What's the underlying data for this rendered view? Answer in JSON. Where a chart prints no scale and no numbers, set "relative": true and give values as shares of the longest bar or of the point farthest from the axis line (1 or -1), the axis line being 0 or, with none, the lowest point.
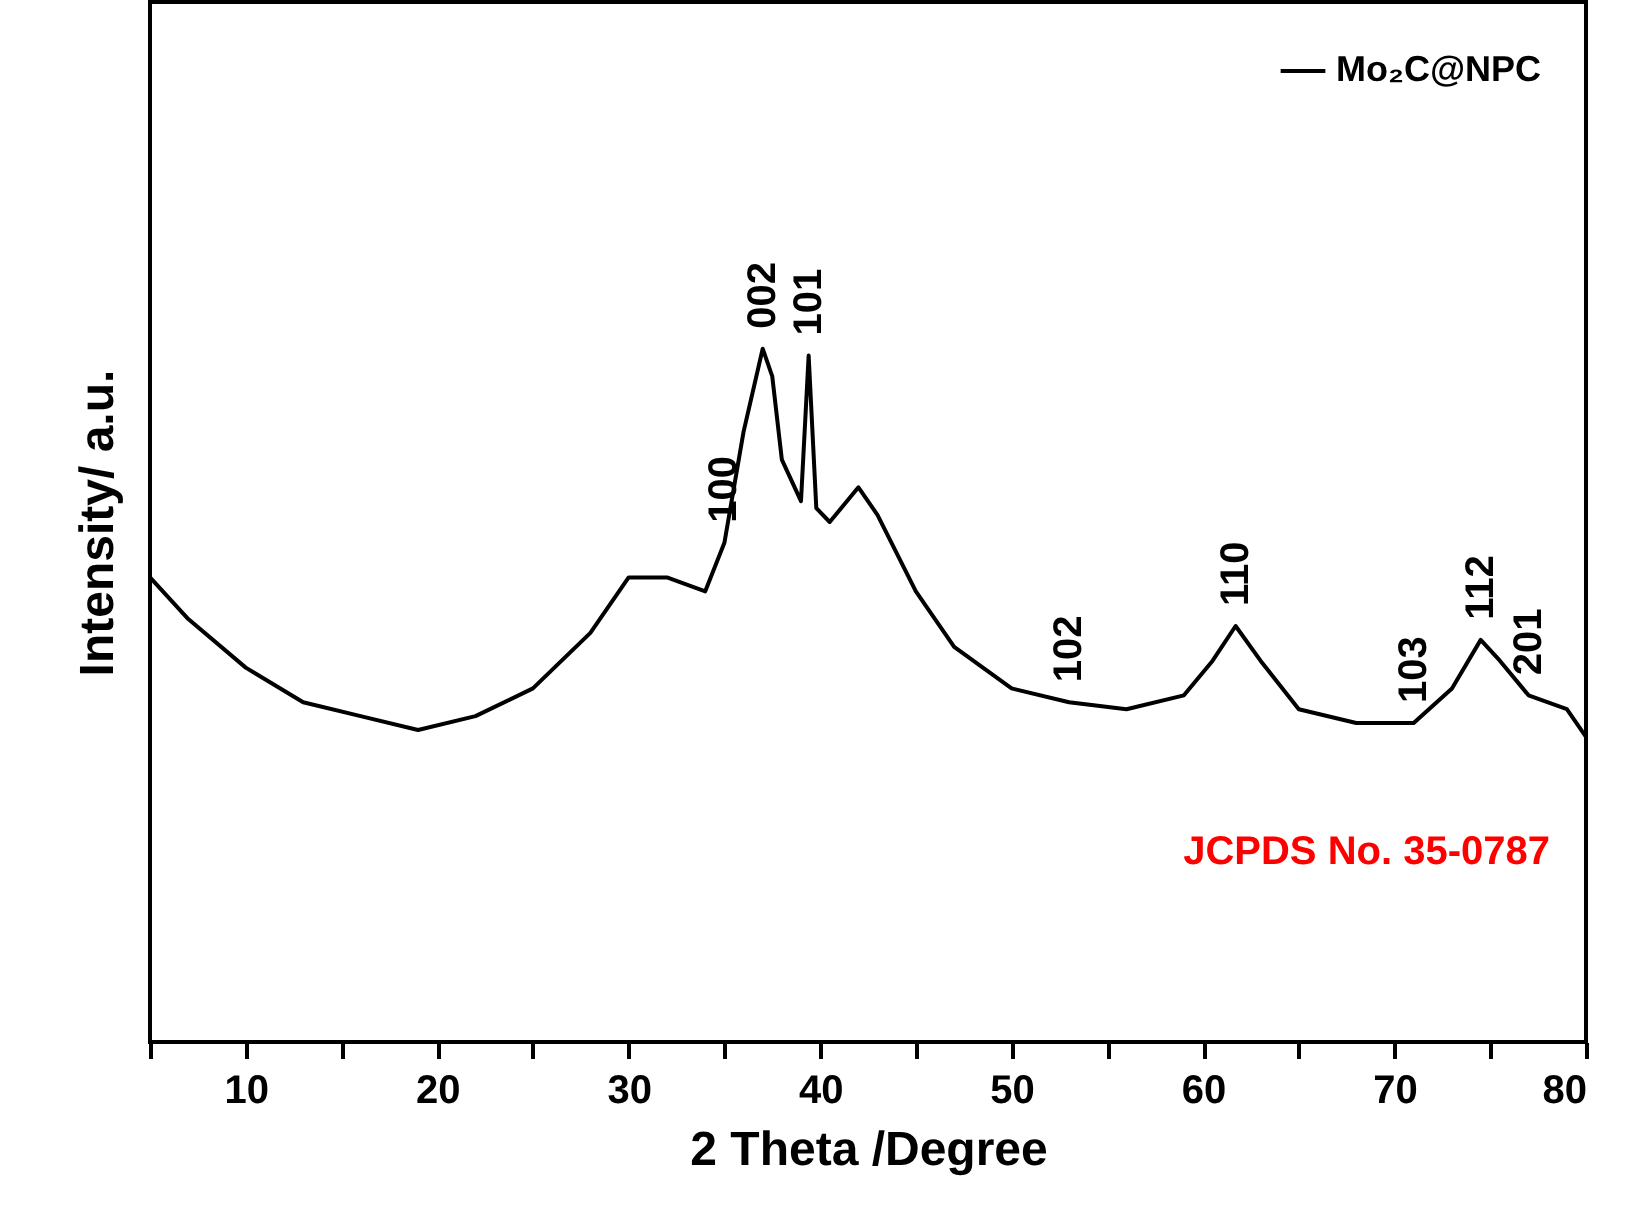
{
  "chart_data": {
    "type": "line",
    "relative": true,
    "xlabel": "2 Theta /Degree",
    "ylabel": "Intensity/ a.u.",
    "x": [
      5,
      7,
      10,
      13,
      16,
      19,
      22,
      25,
      28,
      30,
      32,
      34,
      35,
      36,
      37,
      37.5,
      38,
      39,
      39.4,
      39.8,
      40.5,
      42,
      43,
      45,
      47,
      50,
      53,
      56,
      59,
      60.5,
      61.7,
      63,
      65,
      68,
      71,
      73,
      74.5,
      75.5,
      77,
      79,
      80
    ],
    "series": [
      {
        "name": "Mo₂C@NPC",
        "color": "#000000",
        "values": [
          0.67,
          0.61,
          0.54,
          0.49,
          0.47,
          0.45,
          0.47,
          0.51,
          0.59,
          0.67,
          0.67,
          0.65,
          0.72,
          0.88,
          1.0,
          0.96,
          0.84,
          0.78,
          0.99,
          0.77,
          0.75,
          0.8,
          0.76,
          0.65,
          0.57,
          0.51,
          0.49,
          0.48,
          0.5,
          0.55,
          0.6,
          0.55,
          0.48,
          0.46,
          0.46,
          0.51,
          0.58,
          0.55,
          0.5,
          0.48,
          0.44
        ]
      }
    ],
    "xlim": [
      5,
      80
    ],
    "xticks": [
      {
        "value": 5,
        "label": null
      },
      10,
      {
        "value": 15,
        "label": null
      },
      20,
      {
        "value": 25,
        "label": null
      },
      30,
      {
        "value": 35,
        "label": null
      },
      40,
      {
        "value": 45,
        "label": null
      },
      50,
      {
        "value": 55,
        "label": null
      },
      60,
      {
        "value": 65,
        "label": null
      },
      70,
      {
        "value": 75,
        "label": null
      },
      80
    ],
    "annotations": [
      {
        "text": "100",
        "x": 35,
        "y": 0.72
      },
      {
        "text": "002",
        "x": 37,
        "y": 1.0
      },
      {
        "text": "101",
        "x": 39.4,
        "y": 0.99
      },
      {
        "text": "102",
        "x": 53,
        "y": 0.49
      },
      {
        "text": "110",
        "x": 61.7,
        "y": 0.6
      },
      {
        "text": "103",
        "x": 71,
        "y": 0.46
      },
      {
        "text": "112",
        "x": 74.5,
        "y": 0.58
      },
      {
        "text": "201",
        "x": 77,
        "y": 0.5
      },
      "JCPDS No. 35-0787"
    ],
    "legend": "top right",
    "marker": "none",
    "line_style": "solid",
    "grid": false
  }
}
